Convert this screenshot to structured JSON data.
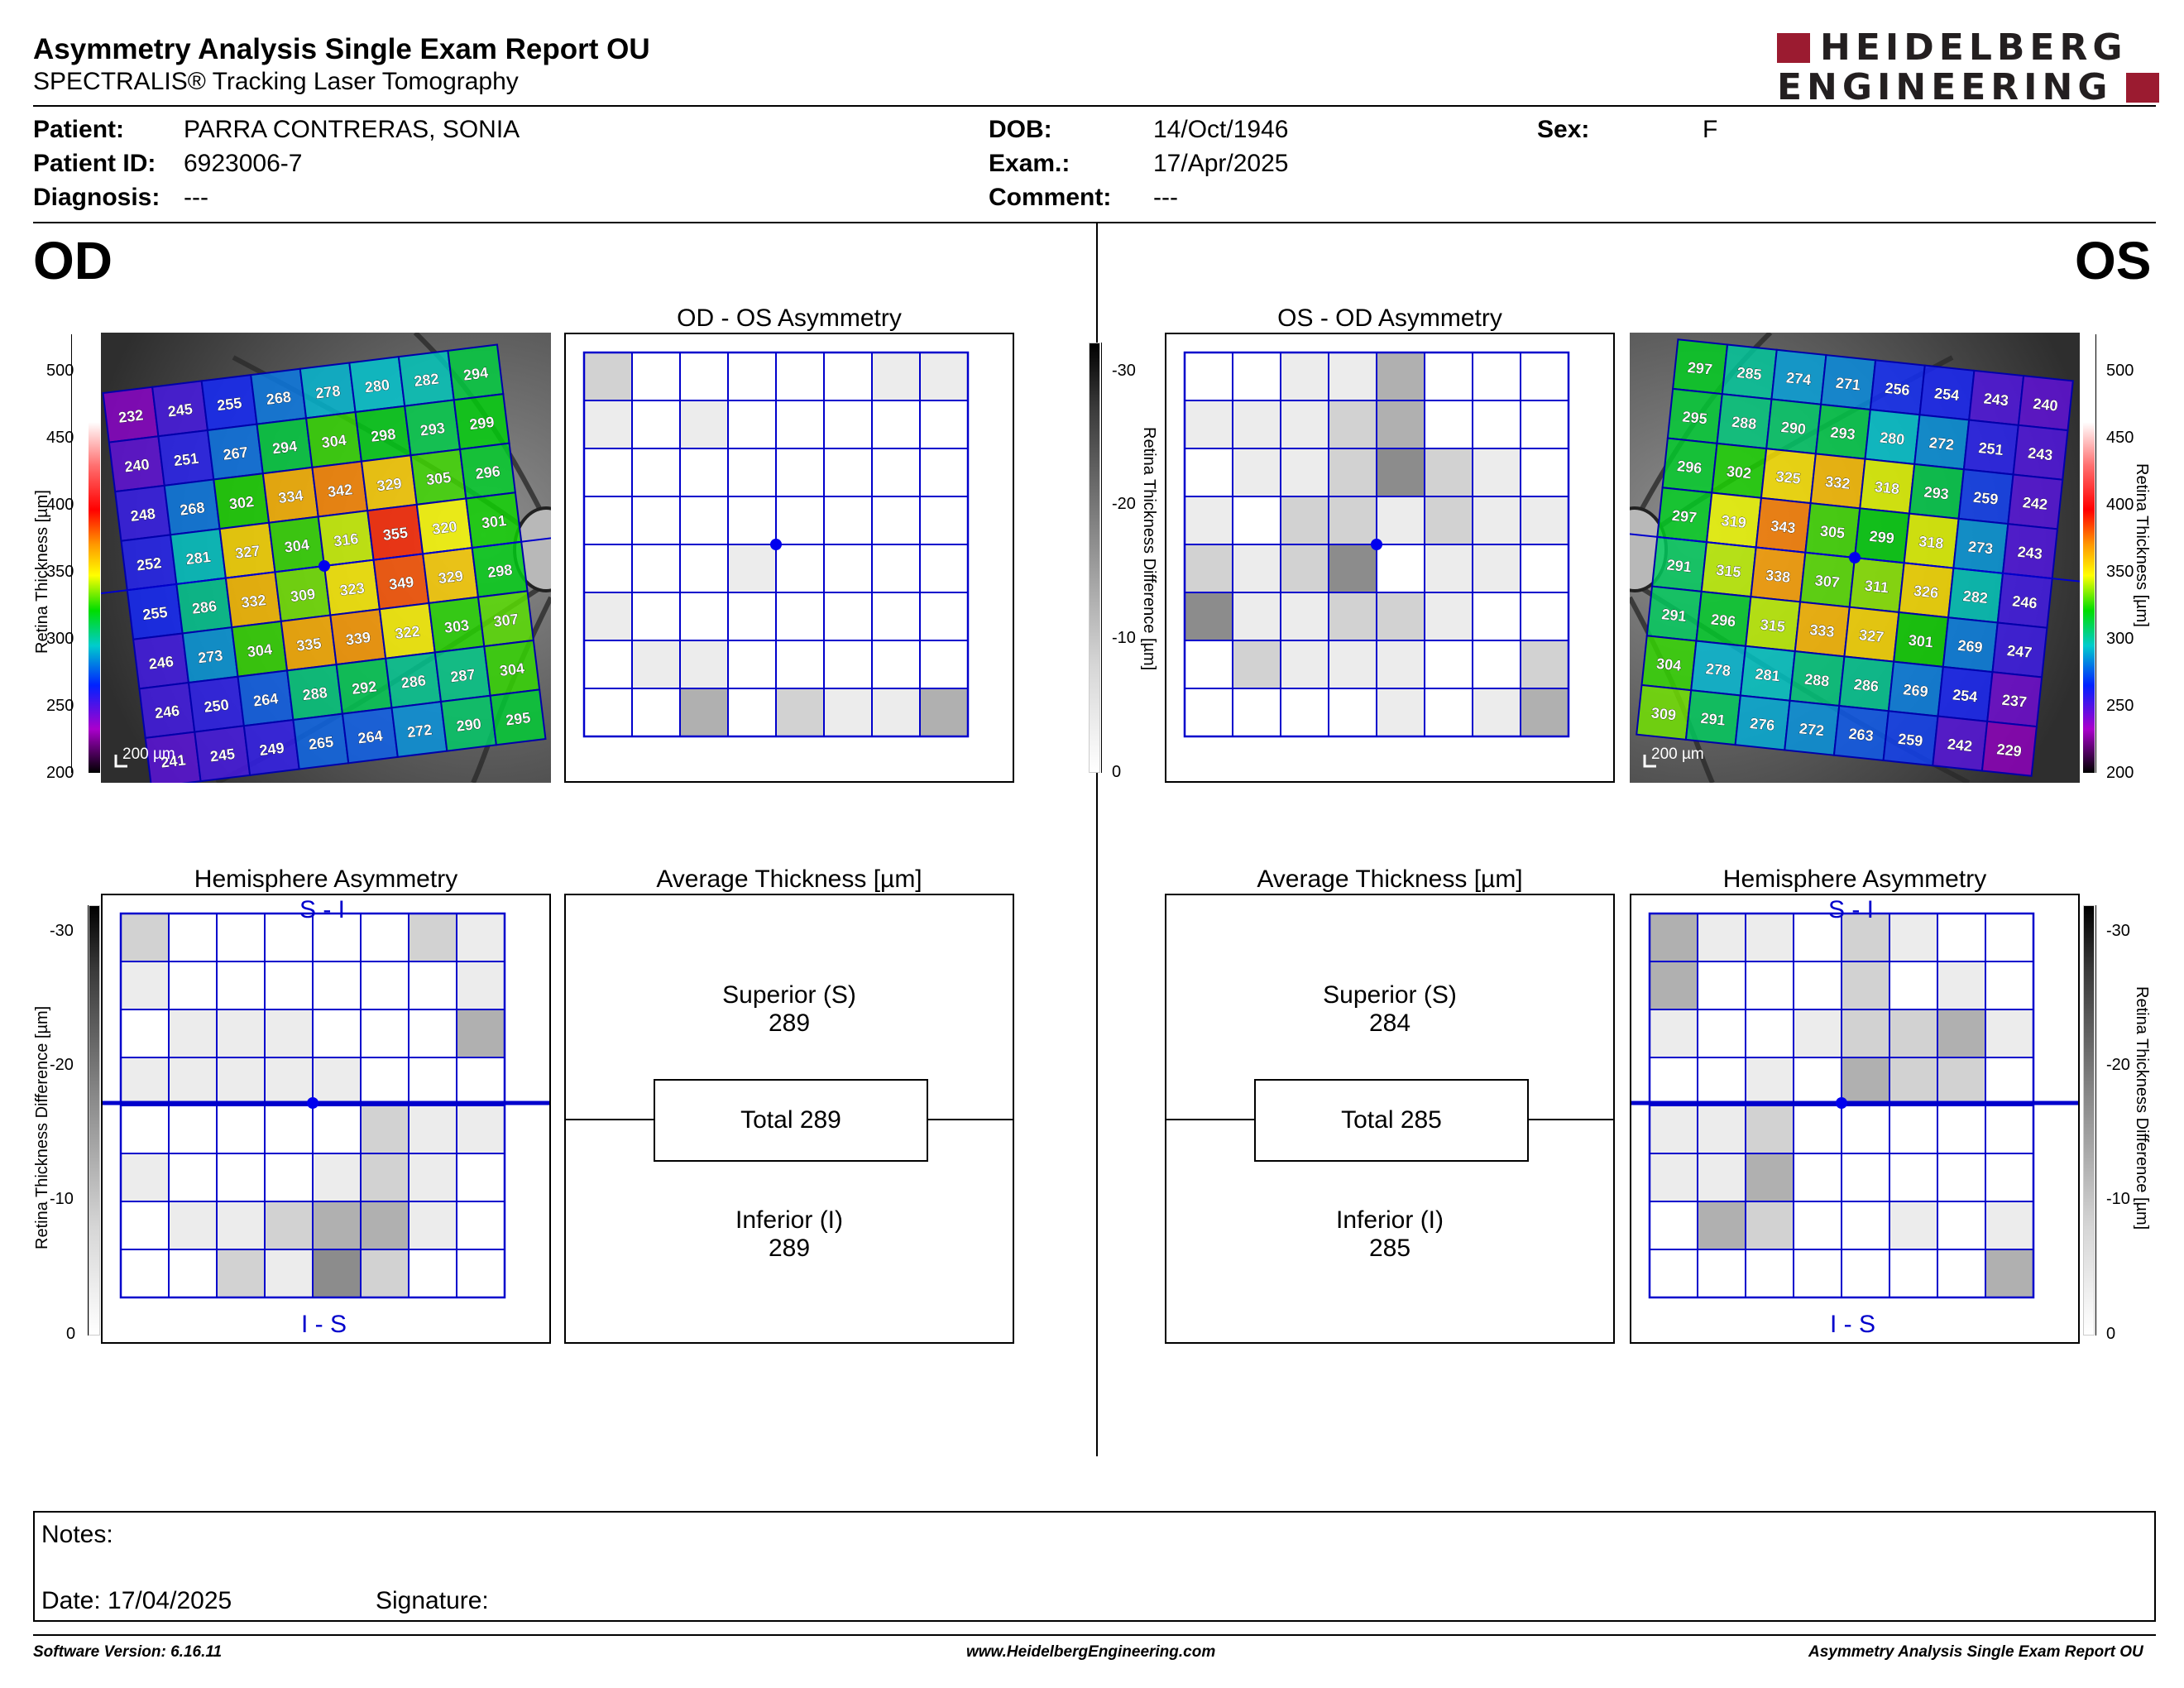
{
  "header": {
    "title": "Asymmetry Analysis Single Exam Report OU",
    "subtitle": "SPECTRALIS® Tracking Laser Tomography",
    "logo_line1": "HEIDELBERG",
    "logo_line2": "ENGINEERING"
  },
  "patient": {
    "patient_label": "Patient:",
    "patient_value": "PARRA CONTRERAS, SONIA",
    "id_label": "Patient ID:",
    "id_value": "6923006-7",
    "diagnosis_label": "Diagnosis:",
    "diagnosis_value": "---",
    "dob_label": "DOB:",
    "dob_value": "14/Oct/1946",
    "exam_label": "Exam.:",
    "exam_value": "17/Apr/2025",
    "comment_label": "Comment:",
    "comment_value": "---",
    "sex_label": "Sex:",
    "sex_value": "F"
  },
  "eyes": {
    "od": "OD",
    "os": "OS"
  },
  "panels": {
    "od_os_asym": "OD - OS Asymmetry",
    "os_od_asym": "OS - OD Asymmetry",
    "hemisphere": "Hemisphere Asymmetry",
    "avg_thickness": "Average Thickness [µm]",
    "si_label": "S - I",
    "is_label": "I - S"
  },
  "scales": {
    "thickness_label": "Retina Thickness [µm]",
    "thickness_ticks": [
      "500",
      "450",
      "400",
      "350",
      "300",
      "250",
      "200"
    ],
    "diff_label": "Retina Thickness Difference [µm]",
    "diff_ticks": [
      "-30",
      "-20",
      "-10",
      "0"
    ],
    "scale_bar": "200 µm"
  },
  "od": {
    "thickness_grid": [
      [
        232,
        245,
        255,
        268,
        278,
        280,
        282,
        294
      ],
      [
        240,
        251,
        267,
        294,
        304,
        298,
        293,
        299
      ],
      [
        248,
        268,
        302,
        334,
        342,
        329,
        305,
        296
      ],
      [
        252,
        281,
        327,
        304,
        316,
        355,
        320,
        301
      ],
      [
        255,
        286,
        332,
        309,
        323,
        349,
        329,
        298
      ],
      [
        246,
        273,
        304,
        335,
        339,
        322,
        303,
        307
      ],
      [
        246,
        250,
        264,
        288,
        292,
        286,
        287,
        304
      ],
      [
        241,
        245,
        249,
        265,
        264,
        272,
        290,
        295
      ]
    ],
    "asym_shades": [
      [
        2,
        0,
        0,
        0,
        0,
        0,
        1,
        1
      ],
      [
        1,
        0,
        1,
        0,
        0,
        0,
        0,
        0
      ],
      [
        0,
        0,
        0,
        0,
        0,
        0,
        0,
        0
      ],
      [
        0,
        0,
        0,
        0,
        0,
        0,
        0,
        0
      ],
      [
        0,
        0,
        0,
        1,
        0,
        0,
        0,
        0
      ],
      [
        1,
        0,
        0,
        0,
        0,
        0,
        0,
        0
      ],
      [
        0,
        1,
        1,
        0,
        0,
        0,
        0,
        0
      ],
      [
        0,
        0,
        3,
        0,
        2,
        1,
        1,
        3
      ]
    ],
    "hemi_shades": [
      [
        2,
        0,
        0,
        0,
        0,
        0,
        2,
        1
      ],
      [
        1,
        0,
        0,
        0,
        0,
        0,
        0,
        1
      ],
      [
        0,
        1,
        1,
        1,
        0,
        0,
        0,
        3
      ],
      [
        1,
        1,
        1,
        1,
        1,
        0,
        0,
        0
      ],
      [
        0,
        0,
        0,
        0,
        0,
        2,
        1,
        1
      ],
      [
        1,
        0,
        0,
        0,
        1,
        2,
        1,
        0
      ],
      [
        0,
        1,
        1,
        2,
        3,
        3,
        1,
        0
      ],
      [
        0,
        0,
        2,
        1,
        4,
        2,
        0,
        0
      ]
    ],
    "superior_label": "Superior (S)",
    "superior_value": "289",
    "total_text": "Total 289",
    "inferior_label": "Inferior (I)",
    "inferior_value": "289"
  },
  "os": {
    "thickness_grid": [
      [
        297,
        285,
        274,
        271,
        256,
        254,
        243,
        240
      ],
      [
        295,
        288,
        290,
        293,
        280,
        272,
        251,
        243
      ],
      [
        296,
        302,
        325,
        332,
        318,
        293,
        259,
        242
      ],
      [
        297,
        319,
        343,
        305,
        299,
        318,
        273,
        243
      ],
      [
        291,
        315,
        338,
        307,
        311,
        326,
        282,
        246
      ],
      [
        291,
        296,
        315,
        333,
        327,
        301,
        269,
        247
      ],
      [
        304,
        278,
        281,
        288,
        286,
        269,
        254,
        237
      ],
      [
        309,
        291,
        276,
        272,
        263,
        259,
        242,
        229
      ]
    ],
    "asym_shades": [
      [
        0,
        0,
        1,
        1,
        3,
        0,
        0,
        0
      ],
      [
        1,
        1,
        1,
        2,
        3,
        0,
        0,
        0
      ],
      [
        0,
        1,
        1,
        2,
        4,
        2,
        1,
        0
      ],
      [
        1,
        0,
        2,
        2,
        1,
        2,
        1,
        1
      ],
      [
        2,
        1,
        2,
        4,
        0,
        1,
        1,
        0
      ],
      [
        4,
        1,
        1,
        2,
        2,
        1,
        0,
        0
      ],
      [
        0,
        2,
        1,
        1,
        1,
        0,
        0,
        2
      ],
      [
        0,
        0,
        0,
        0,
        1,
        0,
        1,
        3
      ]
    ],
    "hemi_shades": [
      [
        3,
        1,
        1,
        0,
        2,
        1,
        0,
        0
      ],
      [
        3,
        0,
        0,
        0,
        2,
        0,
        1,
        0
      ],
      [
        1,
        0,
        0,
        1,
        2,
        2,
        3,
        1
      ],
      [
        0,
        0,
        1,
        0,
        3,
        2,
        2,
        0
      ],
      [
        1,
        1,
        2,
        0,
        0,
        0,
        0,
        0
      ],
      [
        1,
        1,
        3,
        0,
        0,
        0,
        0,
        0
      ],
      [
        0,
        3,
        2,
        0,
        0,
        1,
        0,
        1
      ],
      [
        0,
        0,
        0,
        0,
        0,
        0,
        0,
        3
      ]
    ],
    "superior_label": "Superior (S)",
    "superior_value": "284",
    "total_text": "Total 285",
    "inferior_label": "Inferior (I)",
    "inferior_value": "285"
  },
  "notes": {
    "notes_label": "Notes:",
    "date_text": "Date: 17/04/2025",
    "signature_label": "Signature:"
  },
  "footer": {
    "left": "Software Version: 6.16.11",
    "center": "www.HeidelbergEngineering.com",
    "right": "Asymmetry Analysis Single Exam Report OU"
  }
}
